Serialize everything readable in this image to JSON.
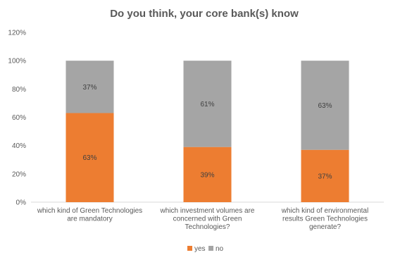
{
  "chart_data": {
    "type": "bar",
    "stacked": true,
    "title": "Do you think, your core bank(s) know",
    "categories": [
      [
        "which kind of Green Technologies",
        "are mandatory"
      ],
      [
        "which investment volumes are",
        "concerned with Green",
        "Technologies?"
      ],
      [
        "which kind of environmental",
        "results Green Technologies",
        "generate?"
      ]
    ],
    "series": [
      {
        "name": "yes",
        "color": "#ED7D31",
        "values": [
          63,
          39,
          37
        ],
        "labels": [
          "63%",
          "39%",
          "37%"
        ]
      },
      {
        "name": "no",
        "color": "#A5A5A5",
        "values": [
          37,
          61,
          63
        ],
        "labels": [
          "37%",
          "61%",
          "63%"
        ]
      }
    ],
    "yticks": [
      "0%",
      "20%",
      "40%",
      "60%",
      "80%",
      "100%",
      "120%"
    ],
    "ylim": [
      0,
      120
    ],
    "grid": false,
    "legend_position": "bottom"
  }
}
